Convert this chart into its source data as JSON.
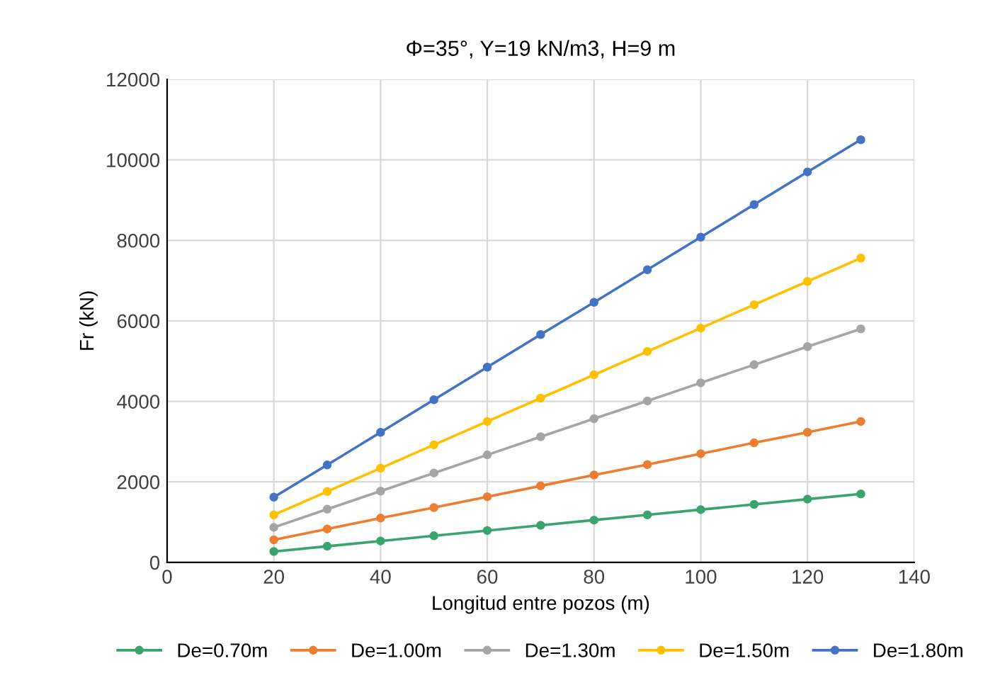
{
  "chart_data": {
    "type": "line",
    "title": "Φ=35°, Y=19 kN/m3, H=9 m",
    "xlabel": "Longitud entre pozos (m)",
    "ylabel": "Fr (kN)",
    "x": [
      20,
      30,
      40,
      50,
      60,
      70,
      80,
      90,
      100,
      110,
      120,
      130
    ],
    "xlim": [
      0,
      140
    ],
    "xticks": [
      0,
      20,
      40,
      60,
      80,
      100,
      120,
      140
    ],
    "ylim": [
      0,
      12000
    ],
    "yticks": [
      0,
      2000,
      4000,
      6000,
      8000,
      10000,
      12000
    ],
    "grid": true,
    "legend": "bottom",
    "marker": "circle",
    "line_style": "solid",
    "series": [
      {
        "name": "De=0.70m",
        "color": "#3aa46e",
        "values": [
          270,
          400,
          530,
          660,
          790,
          920,
          1050,
          1180,
          1310,
          1440,
          1570,
          1700
        ]
      },
      {
        "name": "De=1.00m",
        "color": "#ed7d31",
        "values": [
          560,
          830,
          1100,
          1360,
          1630,
          1900,
          2170,
          2430,
          2700,
          2970,
          3230,
          3500
        ]
      },
      {
        "name": "De=1.30m",
        "color": "#a5a5a5",
        "values": [
          870,
          1320,
          1770,
          2220,
          2670,
          3120,
          3570,
          4010,
          4460,
          4910,
          5360,
          5800
        ]
      },
      {
        "name": "De=1.50m",
        "color": "#ffc000",
        "values": [
          1180,
          1760,
          2340,
          2920,
          3500,
          4080,
          4660,
          5240,
          5820,
          6400,
          6980,
          7560
        ]
      },
      {
        "name": "De=1.80m",
        "color": "#4472c4",
        "values": [
          1620,
          2420,
          3230,
          4040,
          4850,
          5660,
          6460,
          7270,
          8080,
          8890,
          9700,
          10500
        ]
      }
    ]
  }
}
